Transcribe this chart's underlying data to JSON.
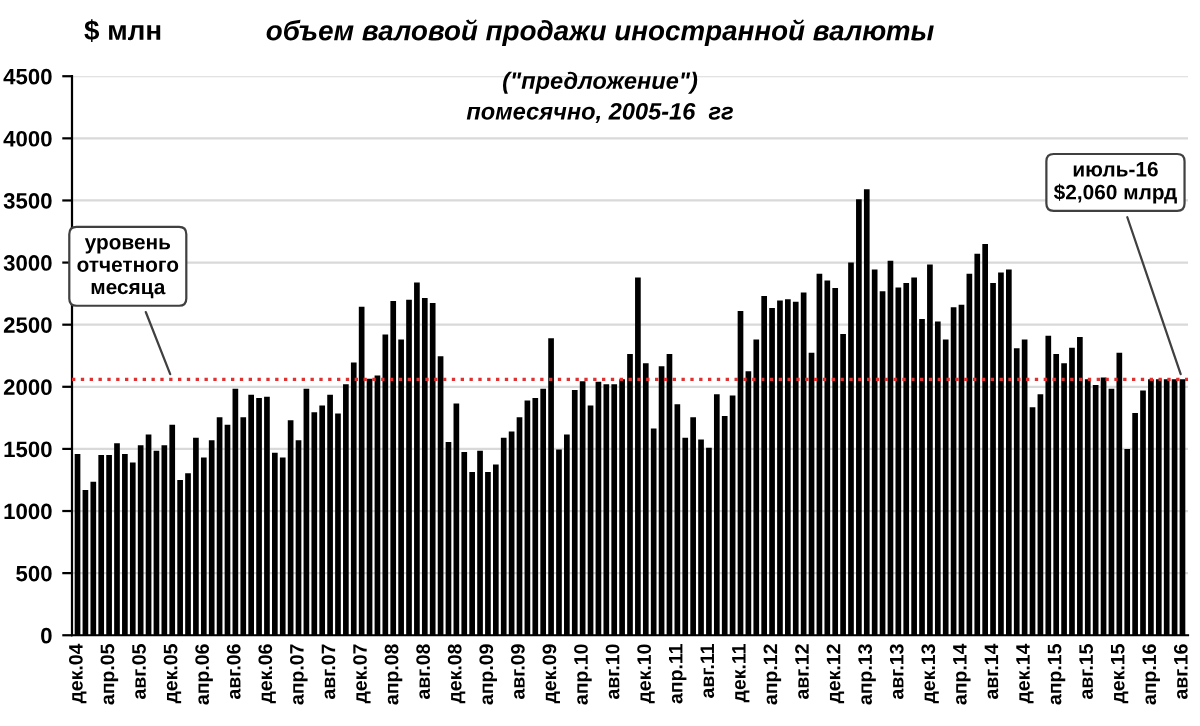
{
  "chart_data": {
    "type": "bar",
    "title": "объем валовой продажи иностранной валюты",
    "subtitle": "(\"предложение\")\nпомесячно, 2005-16  гг",
    "ylabel": "$ млн",
    "categories": [
      "дек.04",
      null,
      null,
      null,
      "апр.05",
      null,
      null,
      null,
      "авг.05",
      null,
      null,
      null,
      "дек.05",
      null,
      null,
      null,
      "апр.06",
      null,
      null,
      null,
      "авг.06",
      null,
      null,
      null,
      "дек.06",
      null,
      null,
      null,
      "апр.07",
      null,
      null,
      null,
      "авг.07",
      null,
      null,
      null,
      "дек.07",
      null,
      null,
      null,
      "апр.08",
      null,
      null,
      null,
      "авг.08",
      null,
      null,
      null,
      "дек.08",
      null,
      null,
      null,
      "апр.09",
      null,
      null,
      null,
      "авг.09",
      null,
      null,
      null,
      "дек.09",
      null,
      null,
      null,
      "апр.10",
      null,
      null,
      null,
      "авг.10",
      null,
      null,
      null,
      "дек.10",
      null,
      null,
      null,
      "апр.11",
      null,
      null,
      null,
      "авг.11",
      null,
      null,
      null,
      "дек.11",
      null,
      null,
      null,
      "апр.12",
      null,
      null,
      null,
      "авг.12",
      null,
      null,
      null,
      "дек.12",
      null,
      null,
      null,
      "апр.13",
      null,
      null,
      null,
      "авг.13",
      null,
      null,
      null,
      "дек.13",
      null,
      null,
      null,
      "апр.14",
      null,
      null,
      null,
      "авг.14",
      null,
      null,
      null,
      "дек.14",
      null,
      null,
      null,
      "апр.15",
      null,
      null,
      null,
      "авг.15",
      null,
      null,
      null,
      "дек.15",
      null,
      null,
      null,
      "апр.16",
      null,
      null,
      null,
      "авг.16"
    ],
    "values": [
      1460,
      1170,
      1235,
      1450,
      1450,
      1545,
      1460,
      1390,
      1530,
      1615,
      1485,
      1530,
      1695,
      1250,
      1305,
      1590,
      1430,
      1570,
      1755,
      1695,
      1985,
      1755,
      1935,
      1910,
      1920,
      1470,
      1430,
      1730,
      1570,
      1985,
      1795,
      1850,
      1935,
      1785,
      2020,
      2195,
      2645,
      2065,
      2090,
      2420,
      2690,
      2380,
      2700,
      2840,
      2715,
      2675,
      2245,
      1555,
      1865,
      1475,
      1315,
      1485,
      1315,
      1375,
      1590,
      1640,
      1755,
      1890,
      1910,
      1985,
      2390,
      1495,
      1615,
      1975,
      2045,
      1850,
      2040,
      2020,
      2020,
      2060,
      2265,
      2880,
      2190,
      1665,
      2165,
      2265,
      1860,
      1590,
      1755,
      1575,
      1510,
      1940,
      1765,
      1930,
      2610,
      2125,
      2380,
      2730,
      2635,
      2695,
      2705,
      2685,
      2760,
      2275,
      2910,
      2855,
      2795,
      2425,
      3000,
      3510,
      3590,
      2945,
      2770,
      3015,
      2800,
      2835,
      2880,
      2545,
      2985,
      2525,
      2380,
      2640,
      2660,
      2910,
      3070,
      3150,
      2835,
      2920,
      2945,
      2310,
      2380,
      1835,
      1940,
      2410,
      2265,
      2190,
      2315,
      2400,
      2060,
      2015,
      2075,
      1985,
      2275,
      1500,
      1790,
      1970,
      2060,
      2060,
      2060,
      2060,
      2060
    ],
    "color": "#000000",
    "ylim": [
      0,
      4500
    ],
    "yticks": [
      0,
      500,
      1000,
      1500,
      2000,
      2500,
      3000,
      3500,
      4000,
      4500
    ],
    "grid": "y",
    "ref_lines": [
      {
        "axis": "y",
        "value": 2060,
        "color": "#e03030",
        "line_style": "dotted"
      }
    ],
    "annotations": [
      {
        "text": "уровень\nотчетного\nмесяца",
        "x": "дек.05",
        "y": 2060
      },
      {
        "text": "июль-16\n$2,060 млрд",
        "x": "авг.16",
        "y": 2060
      }
    ]
  }
}
